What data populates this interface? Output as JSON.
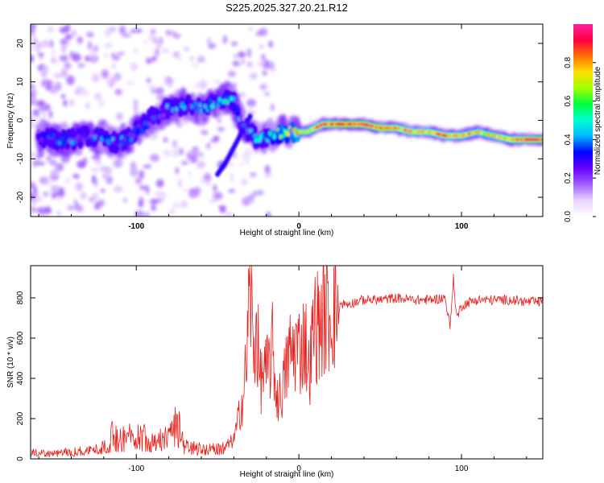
{
  "figure_title": "S225.2025.327.20.21.R12",
  "chart_data": [
    {
      "type": "heatmap",
      "title": "S225.2025.327.20.21.R12",
      "xlabel": "Height of straight line (km)",
      "ylabel": "Frequency (Hz)",
      "xlim": [
        -165,
        150
      ],
      "ylim": [
        -25,
        25
      ],
      "xticks": [
        -100,
        0,
        100
      ],
      "yticks": [
        20,
        10,
        0,
        -10,
        -20
      ],
      "colorbar": {
        "label": "Normalized spectral amplitude",
        "range": [
          0.0,
          1.0
        ],
        "ticks": [
          "0.0",
          "0.2",
          "0.4",
          "0.6",
          "0.8"
        ],
        "tick_values": [
          0.0,
          0.2,
          0.4,
          0.6,
          0.8
        ],
        "colors": [
          "#ffffff",
          "#e9d4ff",
          "#a060ff",
          "#6a00ff",
          "#0000ff",
          "#00b5ff",
          "#00ffd5",
          "#00ff40",
          "#a0ff00",
          "#ffe000",
          "#ff7000",
          "#ff0040",
          "#ff20a0"
        ]
      },
      "ridge": {
        "x": [
          -160,
          -150,
          -140,
          -130,
          -120,
          -110,
          -100,
          -90,
          -80,
          -70,
          -60,
          -50,
          -42,
          -38,
          -35,
          -30,
          -25,
          -20,
          -15,
          -10,
          -5,
          0,
          5,
          10,
          15,
          20,
          30,
          40,
          50,
          60,
          70,
          80,
          90,
          100,
          110,
          120,
          130,
          140,
          150
        ],
        "freq": [
          -4,
          -5,
          -5,
          -4,
          -5,
          -6,
          -3,
          1,
          3,
          4,
          3,
          5,
          6,
          3,
          -1,
          -3,
          -5,
          -4,
          -4,
          -3,
          -3,
          -3,
          -3,
          -2,
          -1,
          -1,
          -1,
          -1,
          -2,
          -2,
          -3,
          -3,
          -4,
          -4,
          -3,
          -4,
          -5,
          -5,
          -5
        ],
        "amplitude": [
          0.25,
          0.3,
          0.35,
          0.3,
          0.35,
          0.35,
          0.3,
          0.3,
          0.35,
          0.35,
          0.35,
          0.4,
          0.45,
          0.4,
          0.3,
          0.35,
          0.4,
          0.45,
          0.5,
          0.55,
          0.6,
          0.7,
          0.75,
          0.8,
          0.85,
          0.9,
          0.95,
          0.9,
          0.9,
          0.85,
          0.8,
          0.8,
          0.85,
          0.8,
          0.75,
          0.75,
          0.85,
          0.9,
          0.9
        ]
      },
      "secondary_ridge": {
        "x": [
          -50,
          -45,
          -40,
          -35,
          -30
        ],
        "freq": [
          -14,
          -11,
          -7,
          -3,
          1
        ]
      }
    },
    {
      "type": "line",
      "xlabel": "Height of straight line (km)",
      "ylabel": "SNR (10 * v/v)",
      "xlim": [
        -165,
        150
      ],
      "ylim": [
        0,
        960
      ],
      "xticks": [
        -100,
        0,
        100
      ],
      "yticks": [
        0,
        200,
        400,
        600,
        800
      ],
      "series": [
        {
          "name": "SNR",
          "color": "#e8201c",
          "x": [
            -165,
            -150,
            -140,
            -130,
            -120,
            -115,
            -110,
            -100,
            -90,
            -80,
            -75,
            -70,
            -60,
            -50,
            -45,
            -40,
            -38,
            -36,
            -34,
            -32,
            -30,
            -28,
            -26,
            -24,
            -22,
            -20,
            -18,
            -16,
            -14,
            -12,
            -10,
            -8,
            -6,
            -4,
            -2,
            0,
            2,
            4,
            6,
            8,
            10,
            12,
            14,
            16,
            20,
            25,
            30,
            40,
            50,
            60,
            70,
            80,
            90,
            93,
            95,
            97,
            100,
            105,
            110,
            120,
            130,
            140,
            150
          ],
          "values": [
            30,
            25,
            35,
            40,
            55,
            110,
            95,
            120,
            95,
            100,
            170,
            60,
            50,
            45,
            60,
            95,
            160,
            260,
            310,
            520,
            900,
            500,
            680,
            380,
            430,
            420,
            480,
            550,
            320,
            300,
            350,
            430,
            530,
            520,
            570,
            540,
            570,
            600,
            420,
            560,
            690,
            650,
            700,
            720,
            740,
            770,
            770,
            790,
            790,
            800,
            790,
            790,
            800,
            650,
            900,
            700,
            760,
            780,
            790,
            790,
            790,
            780,
            780
          ]
        }
      ]
    }
  ]
}
